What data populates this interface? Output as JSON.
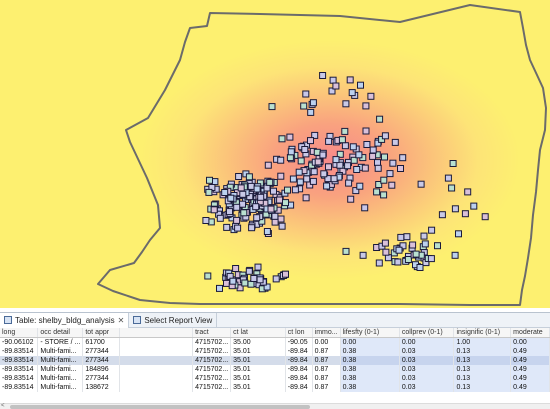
{
  "tabs": [
    {
      "label": "Table: shelby_bldg_analysis",
      "active": true,
      "close": "✕"
    },
    {
      "label": "Select Report View",
      "active": false
    }
  ],
  "table": {
    "columns": [
      "long",
      "occ detail",
      "tot appr",
      "",
      "tract",
      "ct lat",
      "ct lon",
      "immo...",
      "lifesfty (0-1)",
      "collprev (0-1)",
      "insignific (0-1)",
      "moderate"
    ],
    "rows": [
      [
        "-90.06102",
        "- STORE / ...",
        "61700",
        "",
        "4715702...",
        "35.00",
        "-90.05",
        "0.00",
        "0.00",
        "0.00",
        "1.00",
        "0.00"
      ],
      [
        "-89.83514",
        "Multi-fami...",
        "277344",
        "",
        "4715702...",
        "35.01",
        "-89.84",
        "0.87",
        "0.38",
        "0.03",
        "0.13",
        "0.49"
      ],
      [
        "-89.83514",
        "Multi-fami...",
        "277344",
        "",
        "4715702...",
        "35.01",
        "-89.84",
        "0.87",
        "0.38",
        "0.03",
        "0.13",
        "0.49"
      ],
      [
        "-89.83514",
        "Multi-fami...",
        "184896",
        "",
        "4715702...",
        "35.01",
        "-89.84",
        "0.87",
        "0.38",
        "0.03",
        "0.13",
        "0.49"
      ],
      [
        "-89.83514",
        "Multi-fami...",
        "277344",
        "",
        "4715702...",
        "35.01",
        "-89.84",
        "0.87",
        "0.38",
        "0.03",
        "0.13",
        "0.49"
      ],
      [
        "-89.83514",
        "Multi-fami...",
        "138672",
        "",
        "4715702...",
        "35.01",
        "-89.84",
        "0.87",
        "0.38",
        "0.03",
        "0.13",
        "0.49"
      ]
    ],
    "selected_row": 2
  },
  "map": {
    "boundary_color": "#6b6b6b",
    "marker_fill": "#c9c9e6",
    "marker_stroke": "#1a1a3a",
    "hotspot_color": "#f78a8a",
    "background_color": "#fdf070"
  }
}
